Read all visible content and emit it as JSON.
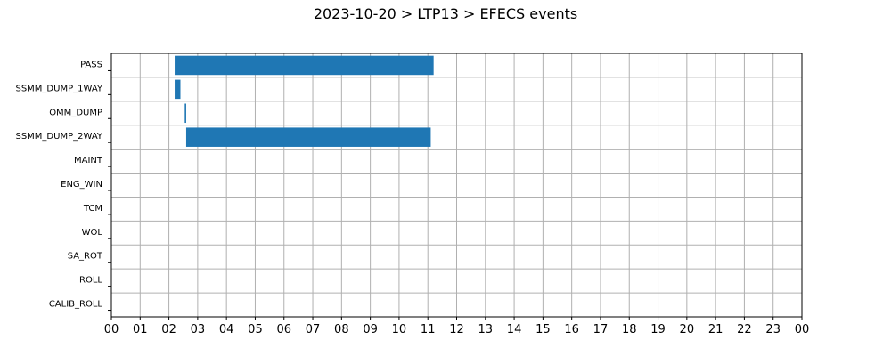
{
  "chart_data": {
    "type": "bar",
    "orientation": "horizontal",
    "title": "2023-10-20 > LTP13 > EFECS events",
    "categories": [
      "PASS",
      "SSMM_DUMP_1WAY",
      "OMM_DUMP",
      "SSMM_DUMP_2WAY",
      "MAINT",
      "ENG_WIN",
      "TCM",
      "WOL",
      "SA_ROT",
      "ROLL",
      "CALIB_ROLL"
    ],
    "bars": [
      {
        "category": "PASS",
        "start": 2.2,
        "end": 11.2
      },
      {
        "category": "SSMM_DUMP_1WAY",
        "start": 2.2,
        "end": 2.4
      },
      {
        "category": "OMM_DUMP",
        "start": 2.55,
        "end": 2.6
      },
      {
        "category": "SSMM_DUMP_2WAY",
        "start": 2.6,
        "end": 11.1
      }
    ],
    "x_tick_labels": [
      "00",
      "01",
      "02",
      "03",
      "04",
      "05",
      "06",
      "07",
      "08",
      "09",
      "10",
      "11",
      "12",
      "13",
      "14",
      "15",
      "16",
      "17",
      "18",
      "19",
      "20",
      "21",
      "22",
      "23",
      "00"
    ],
    "xlim": [
      0,
      24
    ],
    "xlabel": "",
    "ylabel": "",
    "grid": true,
    "bar_color": "#1f77b4",
    "grid_color": "#b0b0b0"
  }
}
